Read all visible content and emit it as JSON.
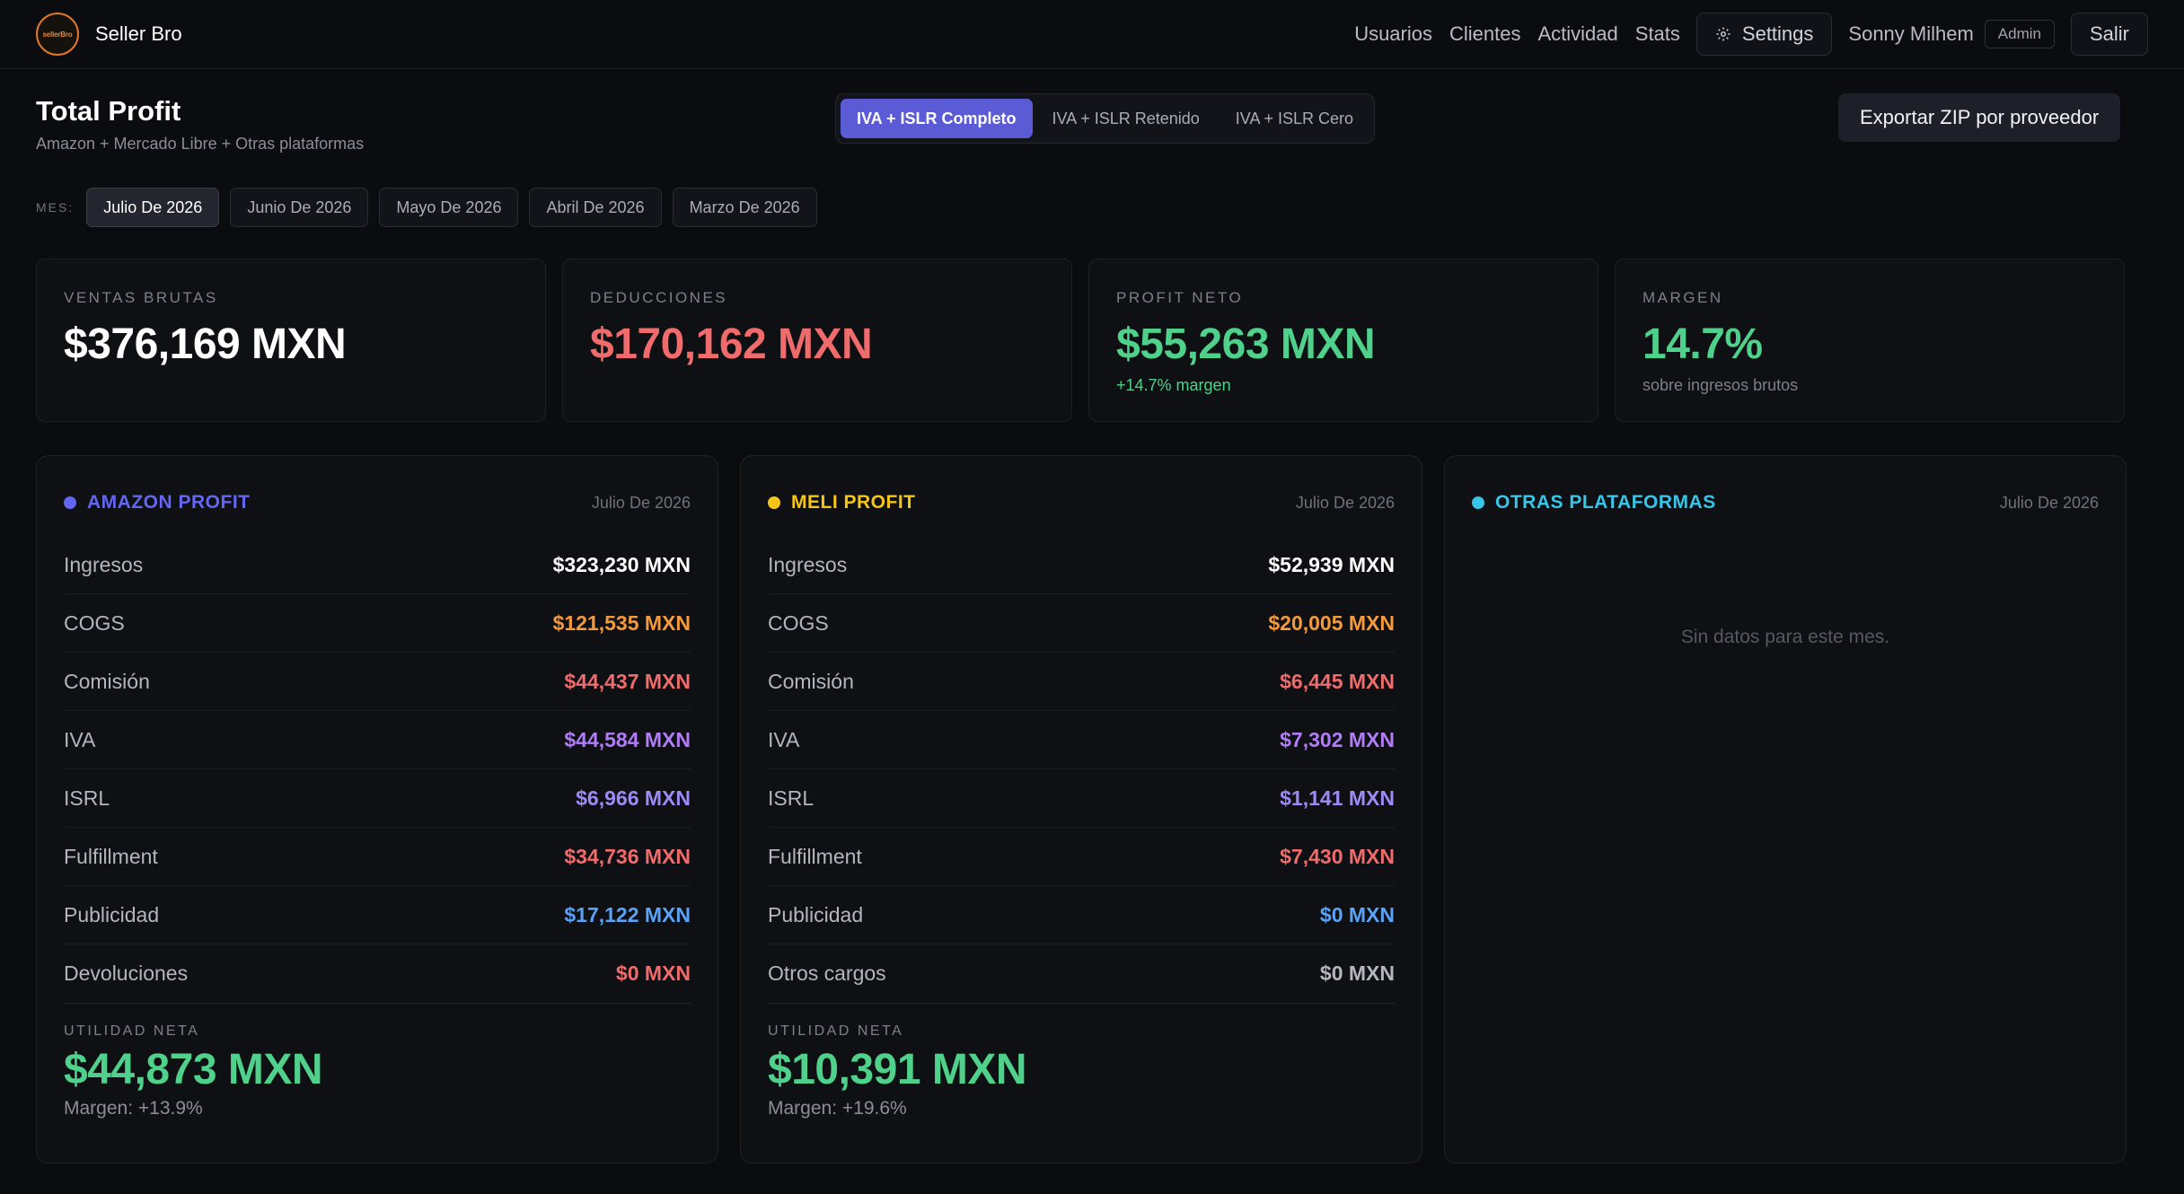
{
  "nav": {
    "logo_text": "sellerBro",
    "brand": "Seller Bro",
    "links": [
      "Usuarios",
      "Clientes",
      "Actividad",
      "Stats"
    ],
    "settings_label": "Settings",
    "user_name": "Sonny Milhem",
    "role": "Admin",
    "logout_label": "Salir"
  },
  "header": {
    "title": "Total Profit",
    "subtitle": "Amazon + Mercado Libre + Otras plataformas",
    "tax_modes": [
      "IVA + ISLR Completo",
      "IVA + ISLR Retenido",
      "IVA + ISLR Cero"
    ],
    "active_tax_mode": 0,
    "export_label": "Exportar ZIP por proveedor"
  },
  "months": {
    "label": "MES:",
    "items": [
      "Julio De 2026",
      "Junio De 2026",
      "Mayo De 2026",
      "Abril De 2026",
      "Marzo De 2026"
    ],
    "active": 0
  },
  "stats": [
    {
      "label": "VENTAS BRUTAS",
      "value": "$376,169 MXN",
      "sub": "",
      "color": "#ffffff"
    },
    {
      "label": "DEDUCCIONES",
      "value": "$170,162 MXN",
      "sub": "",
      "color": "#f06b6b"
    },
    {
      "label": "PROFIT NETO",
      "value": "$55,263 MXN",
      "sub": "+14.7% margen",
      "color": "#4fd18b",
      "sub_color": "#4fd18b"
    },
    {
      "label": "MARGEN",
      "value": "14.7%",
      "sub": "sobre ingresos brutos",
      "color": "#4fd18b",
      "sub_color": "#7c808b"
    }
  ],
  "panels": {
    "amazon": {
      "title": "AMAZON PROFIT",
      "color": "#6366f1",
      "month": "Julio De 2026",
      "rows": [
        {
          "label": "Ingresos",
          "value": "$323,230 MXN",
          "color": "#ffffff"
        },
        {
          "label": "COGS",
          "value": "$121,535 MXN",
          "color": "#f59a3c"
        },
        {
          "label": "Comisión",
          "value": "$44,437 MXN",
          "color": "#f06b6b"
        },
        {
          "label": "IVA",
          "value": "$44,584 MXN",
          "color": "#b07cf7"
        },
        {
          "label": "ISRL",
          "value": "$6,966 MXN",
          "color": "#9a8cf5"
        },
        {
          "label": "Fulfillment",
          "value": "$34,736 MXN",
          "color": "#f06b6b"
        },
        {
          "label": "Publicidad",
          "value": "$17,122 MXN",
          "color": "#5aa2f5"
        },
        {
          "label": "Devoluciones",
          "value": "$0 MXN",
          "color": "#f06b6b"
        }
      ],
      "net_label": "UTILIDAD NETA",
      "net_value": "$44,873 MXN",
      "net_margin": "Margen: +13.9%"
    },
    "meli": {
      "title": "MELI PROFIT",
      "color": "#f5c518",
      "month": "Julio De 2026",
      "rows": [
        {
          "label": "Ingresos",
          "value": "$52,939 MXN",
          "color": "#ffffff"
        },
        {
          "label": "COGS",
          "value": "$20,005 MXN",
          "color": "#f59a3c"
        },
        {
          "label": "Comisión",
          "value": "$6,445 MXN",
          "color": "#f06b6b"
        },
        {
          "label": "IVA",
          "value": "$7,302 MXN",
          "color": "#b07cf7"
        },
        {
          "label": "ISRL",
          "value": "$1,141 MXN",
          "color": "#9a8cf5"
        },
        {
          "label": "Fulfillment",
          "value": "$7,430 MXN",
          "color": "#f06b6b"
        },
        {
          "label": "Publicidad",
          "value": "$0 MXN",
          "color": "#5aa2f5"
        },
        {
          "label": "Otros cargos",
          "value": "$0 MXN",
          "color": "#b3b6bf"
        }
      ],
      "net_label": "UTILIDAD NETA",
      "net_value": "$10,391 MXN",
      "net_margin": "Margen: +19.6%"
    },
    "otras": {
      "title": "OTRAS PLATAFORMAS",
      "color": "#38c5e8",
      "month": "Julio De 2026",
      "empty": "Sin datos para este mes."
    }
  }
}
